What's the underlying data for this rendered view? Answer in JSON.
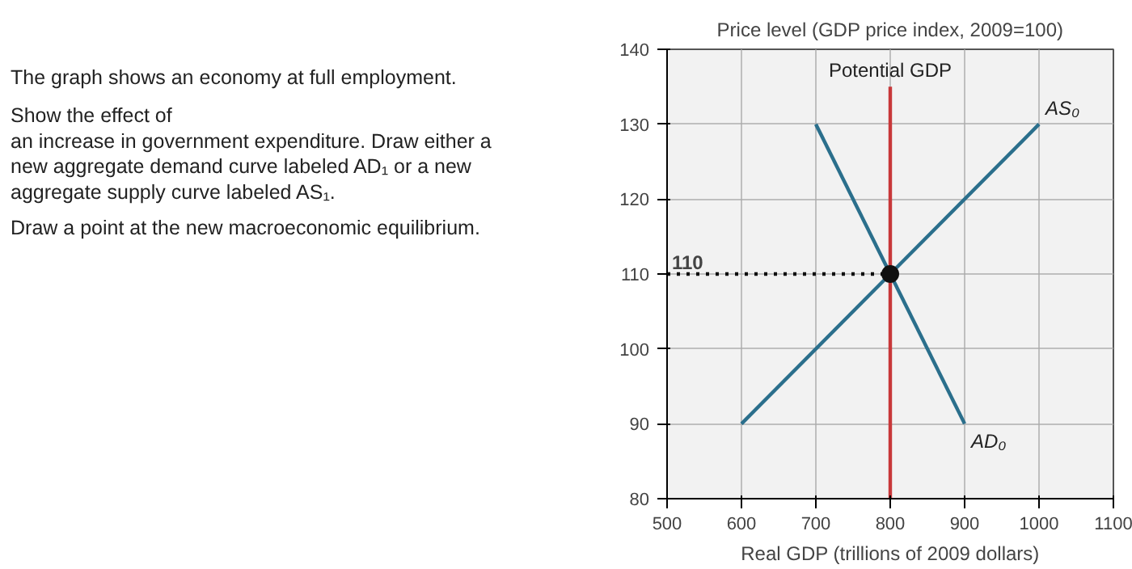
{
  "chart_data": {
    "type": "line",
    "ylabel": "Price level (GDP price index, 2009=100)",
    "xlabel": "Real GDP (trillions of 2009 dollars)",
    "xlim": [
      500,
      1100
    ],
    "xticks": [
      500,
      600,
      700,
      800,
      900,
      1000,
      1100
    ],
    "ylim": [
      80,
      140
    ],
    "yticks": [
      80,
      90,
      100,
      110,
      120,
      130,
      140
    ],
    "grid": true,
    "series": [
      {
        "name": "AD₀",
        "color": "#2b6f8c",
        "x": [
          700,
          800,
          900
        ],
        "values": [
          130,
          110,
          90
        ]
      },
      {
        "name": "AS₀",
        "color": "#2b6f8c",
        "x": [
          600,
          800,
          1000
        ],
        "values": [
          90,
          110,
          130
        ]
      },
      {
        "name": "Potential GDP",
        "color": "#c8383a",
        "x": [
          800,
          800
        ],
        "values": [
          80,
          135
        ]
      },
      {
        "color": "#111111",
        "x": [
          500,
          800
        ],
        "values": [
          110,
          110
        ],
        "line_style": "dotted"
      },
      {
        "type": "scatter",
        "color": "#111111",
        "x": [
          800
        ],
        "values": [
          110
        ],
        "marker": "circle"
      }
    ],
    "annotations": [
      "The graph shows an economy at full employment.",
      "Show the effect of",
      "an increase in government expenditure. Draw either a",
      "new aggregate demand curve labeled AD₁  or a new",
      "aggregate supply curve labeled AS₁.",
      "Draw a point at the new macroeconomic equilibrium.",
      {
        "text": "110",
        "x": 500,
        "y": 110
      }
    ]
  }
}
